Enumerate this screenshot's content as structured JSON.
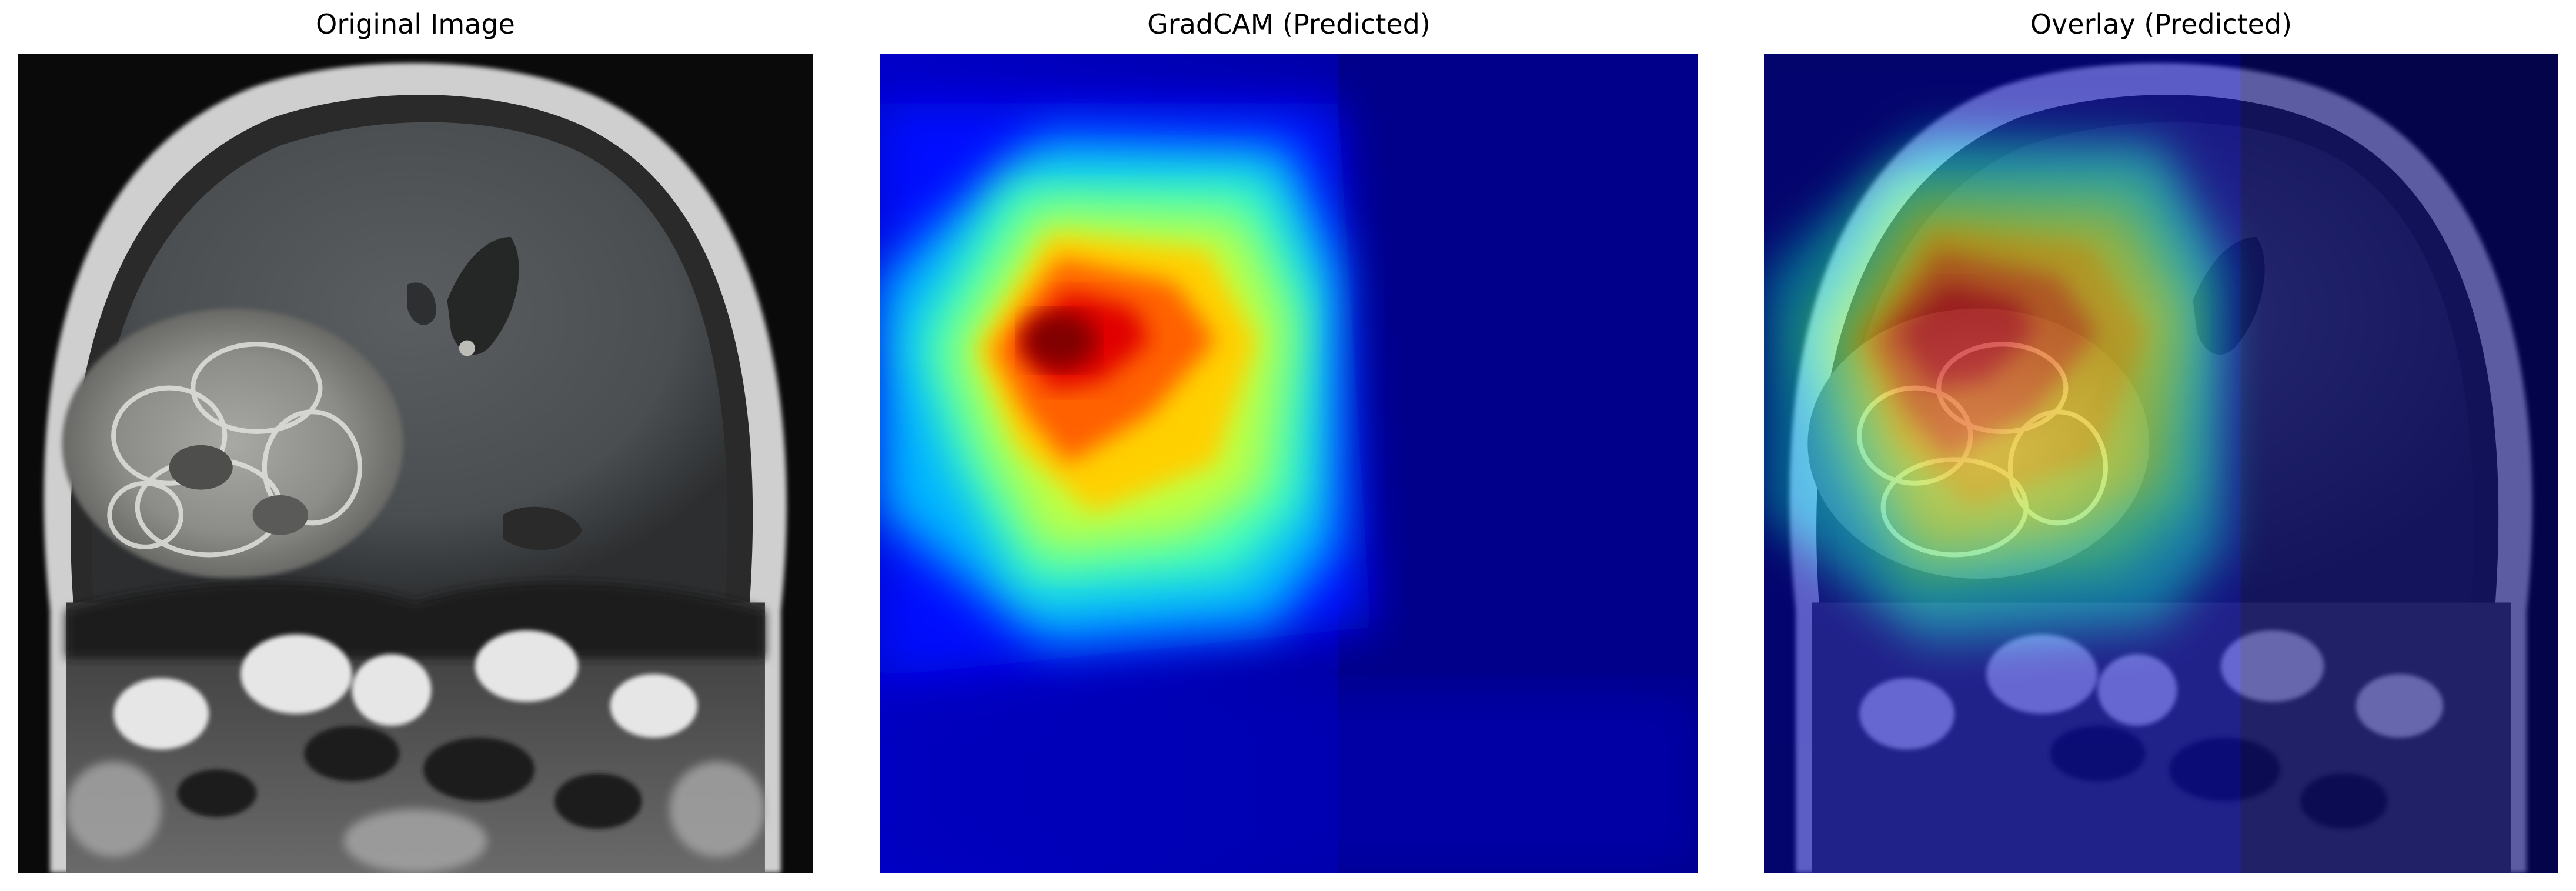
{
  "panels": [
    {
      "title": "Original Image",
      "icon": "mri-brain-scan-image"
    },
    {
      "title": "GradCAM (Predicted)",
      "icon": "gradcam-heatmap-image"
    },
    {
      "title": "Overlay (Predicted)",
      "icon": "heatmap-overlay-image"
    }
  ],
  "colors": {
    "heat_low": "#00007f",
    "heat_mid": "#00ffff",
    "heat_high": "#ff0000",
    "heat_peak": "#800000"
  }
}
